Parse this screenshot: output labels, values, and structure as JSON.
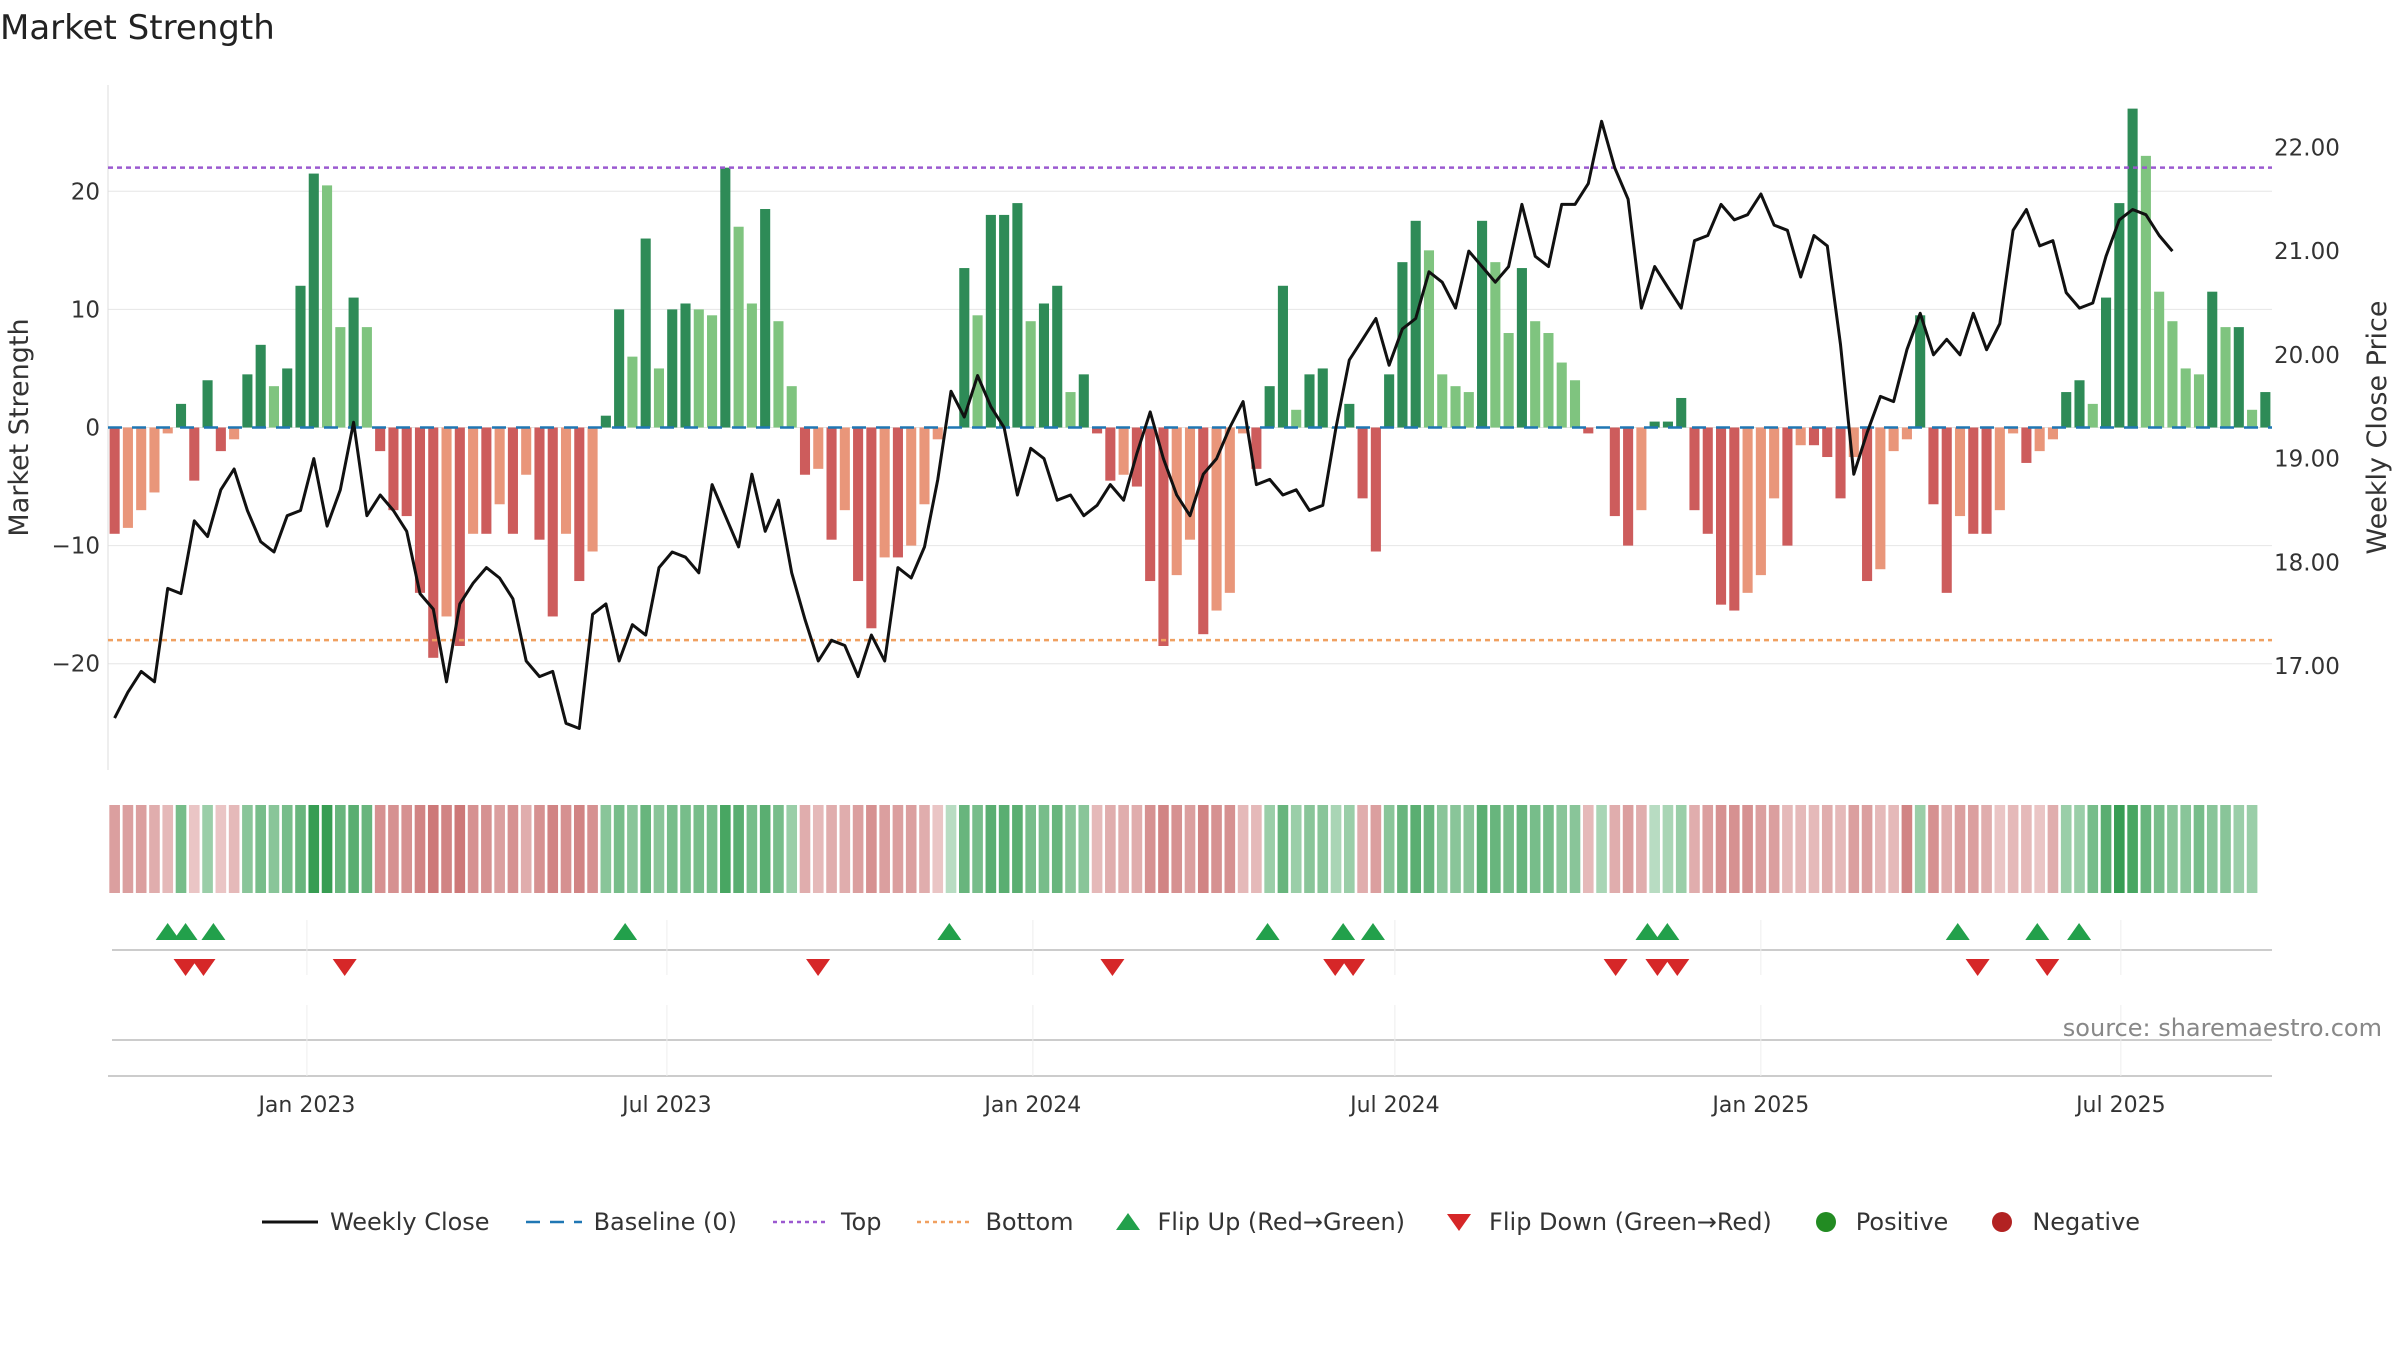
{
  "colors": {
    "strong_pos": "#2e8b57",
    "weak_pos": "#7fc47f",
    "strong_neg": "#cd5c5c",
    "weak_neg": "#e9967a",
    "line": "#111111",
    "baseline": "#1f77b4",
    "top": "#9b59d0",
    "bottom": "#f0a060",
    "flip_up": "#22a04b",
    "flip_down": "#d62728",
    "positive": "#228b22",
    "negative": "#b22222"
  },
  "chart_data": {
    "type": "bar",
    "title": "Market Strength",
    "ylabel": "Market Strength",
    "y2label": "Weekly Close Price",
    "ylim": [
      -29,
      29
    ],
    "y2lim": [
      16.0,
      22.6
    ],
    "yticks": [
      -20,
      -10,
      0,
      10,
      20
    ],
    "yticklabels": [
      "−20",
      "−10",
      "0",
      "10",
      "20"
    ],
    "y2ticks": [
      17.0,
      18.0,
      19.0,
      20.0,
      21.0,
      22.0
    ],
    "y2ticklabels": [
      "17.00",
      "18.00",
      "19.00",
      "20.00",
      "21.00",
      "22.00"
    ],
    "top_level": 22,
    "bottom_level": -18,
    "baseline": 0,
    "x_start": "2022-09-23",
    "x_end": "2025-09-15",
    "xticks": [
      {
        "date": "2023-01-01",
        "label": "Jan 2023"
      },
      {
        "date": "2023-07-01",
        "label": "Jul 2023"
      },
      {
        "date": "2024-01-01",
        "label": "Jan 2024"
      },
      {
        "date": "2024-07-01",
        "label": "Jul 2024"
      },
      {
        "date": "2025-01-01",
        "label": "Jan 2025"
      },
      {
        "date": "2025-07-01",
        "label": "Jul 2025"
      }
    ],
    "strength_values": [
      -9,
      -8.5,
      -7,
      -5.5,
      -0.5,
      2,
      -4.5,
      4,
      -2,
      -1,
      4.5,
      7,
      3.5,
      5,
      12,
      21.5,
      20.5,
      8.5,
      11,
      8.5,
      -2,
      -7,
      -7.5,
      -14,
      -19.5,
      -16,
      -18.5,
      -9,
      -9,
      -6.5,
      -9,
      -4,
      -9.5,
      -16,
      -9,
      -13,
      -10.5,
      1,
      10,
      6,
      16,
      5,
      10,
      10.5,
      10,
      9.5,
      22,
      17,
      10.5,
      18.5,
      9,
      3.5,
      -4,
      -3.5,
      -9.5,
      -7,
      -13,
      -17,
      -11,
      -11,
      -10,
      -6.5,
      -1,
      0,
      13.5,
      9.5,
      18,
      18,
      19,
      9,
      10.5,
      12,
      3,
      4.5,
      -0.5,
      -4.5,
      -4,
      -5,
      -13,
      -18.5,
      -12.5,
      -9.5,
      -17.5,
      -15.5,
      -14,
      -0.5,
      -3.5,
      3.5,
      12,
      1.5,
      4.5,
      5,
      0,
      2,
      -6,
      -10.5,
      4.5,
      14,
      17.5,
      15,
      4.5,
      3.5,
      3,
      17.5,
      14,
      8,
      13.5,
      9,
      8,
      5.5,
      4,
      -0.5,
      0,
      -7.5,
      -10,
      -7,
      0.5,
      0.5,
      2.5,
      -7,
      -9,
      -15,
      -15.5,
      -14,
      -12.5,
      -6,
      -10,
      -1.5,
      -1.5,
      -2.5,
      -6,
      -2.5,
      -13,
      -12,
      -2,
      -1,
      9.5,
      -6.5,
      -14,
      -7.5,
      -9,
      -9,
      -7,
      -0.5,
      -3,
      -2,
      -1,
      3,
      4,
      2,
      11,
      19,
      27,
      23,
      11.5,
      9,
      5,
      4.5,
      11.5,
      8.5,
      8.5,
      1.5,
      3
    ],
    "price_values": [
      16.5,
      16.75,
      16.95,
      16.85,
      17.75,
      17.7,
      18.4,
      18.25,
      18.7,
      18.9,
      18.5,
      18.2,
      18.1,
      18.45,
      18.5,
      19.0,
      18.35,
      18.7,
      19.35,
      18.45,
      18.65,
      18.5,
      18.3,
      17.7,
      17.55,
      16.85,
      17.6,
      17.8,
      17.95,
      17.85,
      17.65,
      17.05,
      16.9,
      16.95,
      16.45,
      16.4,
      17.5,
      17.6,
      17.05,
      17.4,
      17.3,
      17.95,
      18.1,
      18.05,
      17.9,
      18.75,
      18.45,
      18.15,
      18.85,
      18.3,
      18.6,
      17.9,
      17.45,
      17.05,
      17.25,
      17.2,
      16.9,
      17.3,
      17.05,
      17.95,
      17.85,
      18.15,
      18.8,
      19.65,
      19.4,
      19.8,
      19.5,
      19.3,
      18.65,
      19.1,
      19.0,
      18.6,
      18.65,
      18.45,
      18.55,
      18.75,
      18.6,
      19.05,
      19.45,
      19.0,
      18.65,
      18.45,
      18.85,
      19.0,
      19.3,
      19.55,
      18.75,
      18.8,
      18.65,
      18.7,
      18.5,
      18.55,
      19.3,
      19.95,
      20.15,
      20.35,
      19.9,
      20.25,
      20.35,
      20.8,
      20.7,
      20.45,
      21.0,
      20.85,
      20.7,
      20.85,
      21.45,
      20.95,
      20.85,
      21.45,
      21.45,
      21.65,
      22.25,
      21.8,
      21.5,
      20.45,
      20.85,
      20.65,
      20.45,
      21.1,
      21.15,
      21.45,
      21.3,
      21.35,
      21.55,
      21.25,
      21.2,
      20.75,
      21.15,
      21.05,
      20.1,
      18.85,
      19.25,
      19.6,
      19.55,
      20.05,
      20.4,
      20.0,
      20.15,
      20.0,
      20.4,
      20.05,
      20.3,
      21.2,
      21.4,
      21.05,
      21.1,
      20.6,
      20.45,
      20.5,
      20.95,
      21.3,
      21.4,
      21.35,
      21.15,
      21.0
    ],
    "heat_strength": [
      0.4,
      0.4,
      0.4,
      0.3,
      0.2,
      0.5,
      0.1,
      0.3,
      0.1,
      0.2,
      0.4,
      0.5,
      0.4,
      0.5,
      0.6,
      0.9,
      0.9,
      0.6,
      0.7,
      0.6,
      0.5,
      0.5,
      0.5,
      0.6,
      0.7,
      0.6,
      0.7,
      0.5,
      0.5,
      0.4,
      0.5,
      0.3,
      0.5,
      0.6,
      0.5,
      0.6,
      0.5,
      0.4,
      0.5,
      0.4,
      0.6,
      0.4,
      0.5,
      0.5,
      0.5,
      0.5,
      0.8,
      0.7,
      0.5,
      0.7,
      0.5,
      0.3,
      0.3,
      0.2,
      0.3,
      0.3,
      0.4,
      0.5,
      0.4,
      0.4,
      0.4,
      0.3,
      0.1,
      0.1,
      0.6,
      0.5,
      0.7,
      0.7,
      0.7,
      0.5,
      0.5,
      0.6,
      0.4,
      0.4,
      0.2,
      0.3,
      0.3,
      0.3,
      0.5,
      0.6,
      0.5,
      0.4,
      0.6,
      0.5,
      0.5,
      0.2,
      0.2,
      0.3,
      0.6,
      0.3,
      0.4,
      0.4,
      0.2,
      0.3,
      0.3,
      0.4,
      0.4,
      0.6,
      0.7,
      0.6,
      0.4,
      0.4,
      0.4,
      0.7,
      0.6,
      0.5,
      0.6,
      0.5,
      0.5,
      0.4,
      0.4,
      0.2,
      0.2,
      0.3,
      0.4,
      0.3,
      0.1,
      0.2,
      0.3,
      0.3,
      0.4,
      0.5,
      0.5,
      0.5,
      0.4,
      0.4,
      0.2,
      0.2,
      0.2,
      0.3,
      0.2,
      0.4,
      0.4,
      0.2,
      0.2,
      0.6,
      0.3,
      0.5,
      0.3,
      0.4,
      0.4,
      0.3,
      0.1,
      0.2,
      0.2,
      0.1,
      0.3,
      0.3,
      0.3,
      0.5,
      0.7,
      0.9,
      0.8,
      0.6,
      0.5,
      0.4,
      0.4,
      0.5,
      0.4,
      0.4,
      0.3,
      0.3
    ],
    "flip_up": [
      "2022-10-23",
      "2022-11-01",
      "2022-11-15",
      "2023-06-10",
      "2023-11-20",
      "2024-04-28",
      "2024-06-05",
      "2024-06-20",
      "2024-11-05",
      "2024-11-15",
      "2025-04-10",
      "2025-05-20",
      "2025-06-10"
    ],
    "flip_down": [
      "2022-11-01",
      "2022-11-10",
      "2023-01-20",
      "2023-09-15",
      "2024-02-10",
      "2024-06-01",
      "2024-06-10",
      "2024-10-20",
      "2024-11-10",
      "2024-11-20",
      "2025-04-20",
      "2025-05-25"
    ],
    "legend": [
      "Weekly Close",
      "Baseline (0)",
      "Top",
      "Bottom",
      "Flip Up (Red→Green)",
      "Flip Down (Green→Red)",
      "Positive",
      "Negative"
    ],
    "source": "source: sharemaestro.com"
  }
}
